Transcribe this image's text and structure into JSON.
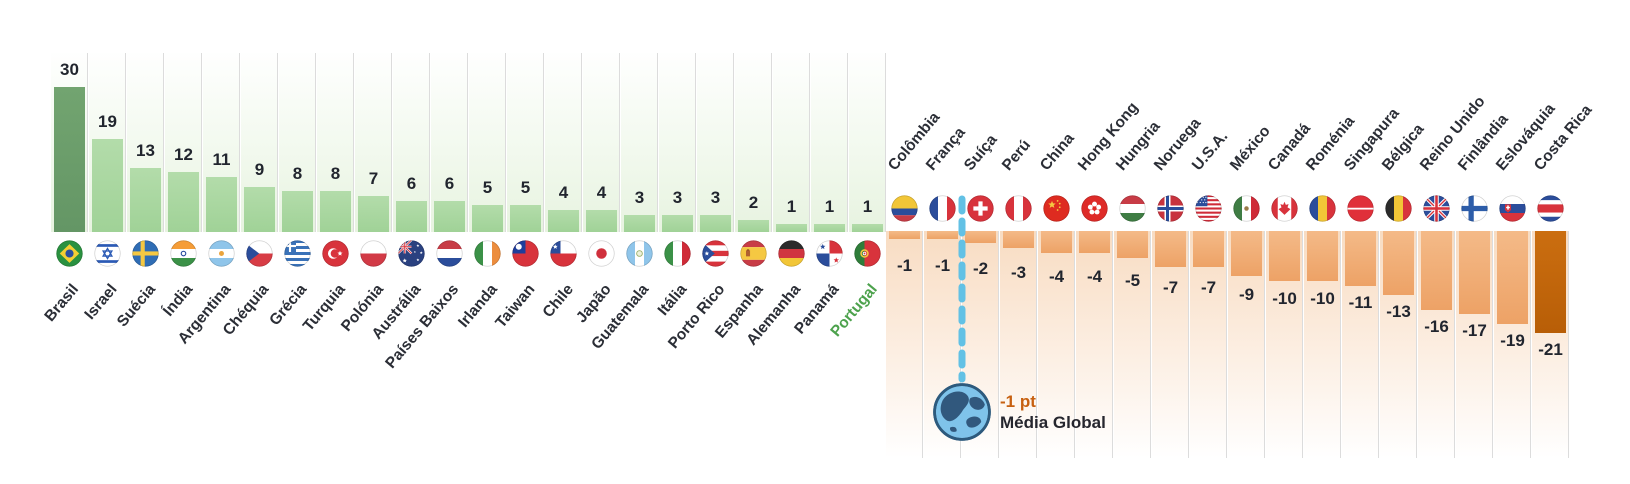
{
  "chart_data": {
    "type": "bar",
    "unit": "pt",
    "legend": "none",
    "grid": "off",
    "layout": "positive bars grow up from shared axis on left group; negative bars hang down on right group; country flag and rotated name label at axis side of each column",
    "positive_side": {
      "bar_color": "#a9d7a0",
      "highlight_bar_color": "#6b9c68",
      "track_color": "#e7f3e0",
      "items": [
        {
          "label": "Brasil",
          "value": 30,
          "flag": "brasil",
          "bar_highlight": true
        },
        {
          "label": "Israel",
          "value": 19,
          "flag": "israel"
        },
        {
          "label": "Suécia",
          "value": 13,
          "flag": "suecia"
        },
        {
          "label": "Índia",
          "value": 12,
          "flag": "india"
        },
        {
          "label": "Argentina",
          "value": 11,
          "flag": "argentina"
        },
        {
          "label": "Chéquia",
          "value": 9,
          "flag": "chequia"
        },
        {
          "label": "Grécia",
          "value": 8,
          "flag": "grecia"
        },
        {
          "label": "Turquia",
          "value": 8,
          "flag": "turquia"
        },
        {
          "label": "Polónia",
          "value": 7,
          "flag": "polonia"
        },
        {
          "label": "Austrália",
          "value": 6,
          "flag": "australia"
        },
        {
          "label": "Países Baixos",
          "value": 6,
          "flag": "paises-baixos"
        },
        {
          "label": "Irlanda",
          "value": 5,
          "flag": "irlanda"
        },
        {
          "label": "Taiwan",
          "value": 5,
          "flag": "taiwan"
        },
        {
          "label": "Chile",
          "value": 4,
          "flag": "chile"
        },
        {
          "label": "Japão",
          "value": 4,
          "flag": "japao"
        },
        {
          "label": "Guatemala",
          "value": 3,
          "flag": "guatemala"
        },
        {
          "label": "Itália",
          "value": 3,
          "flag": "italia"
        },
        {
          "label": "Porto Rico",
          "value": 3,
          "flag": "porto-rico"
        },
        {
          "label": "Espanha",
          "value": 2,
          "flag": "espanha"
        },
        {
          "label": "Alemanha",
          "value": 1,
          "flag": "alemanha"
        },
        {
          "label": "Panamá",
          "value": 1,
          "flag": "panama"
        },
        {
          "label": "Portugal",
          "value": 1,
          "flag": "portugal",
          "label_highlight": true
        }
      ]
    },
    "negative_side": {
      "bar_color": "#f1ad76",
      "highlight_bar_color": "#c2660c",
      "track_color": "#f8dcc2",
      "items": [
        {
          "label": "Colômbia",
          "value": -1,
          "flag": "colombia"
        },
        {
          "label": "França",
          "value": -1,
          "flag": "franca"
        },
        {
          "label": "Suíça",
          "value": -2,
          "flag": "suica"
        },
        {
          "label": "Perú",
          "value": -3,
          "flag": "peru"
        },
        {
          "label": "China",
          "value": -4,
          "flag": "china"
        },
        {
          "label": "Hong Kong",
          "value": -4,
          "flag": "hong-kong"
        },
        {
          "label": "Hungria",
          "value": -5,
          "flag": "hungria"
        },
        {
          "label": "Noruega",
          "value": -7,
          "flag": "noruega"
        },
        {
          "label": "U.S.A.",
          "value": -7,
          "flag": "usa"
        },
        {
          "label": "México",
          "value": -9,
          "flag": "mexico"
        },
        {
          "label": "Canadá",
          "value": -10,
          "flag": "canada"
        },
        {
          "label": "Roménia",
          "value": -10,
          "flag": "romenia"
        },
        {
          "label": "Singapura",
          "value": -11,
          "flag": "singapura"
        },
        {
          "label": "Bélgica",
          "value": -13,
          "flag": "belgica"
        },
        {
          "label": "Reino Unido",
          "value": -16,
          "flag": "reino-unido"
        },
        {
          "label": "Finlândia",
          "value": -17,
          "flag": "finlandia"
        },
        {
          "label": "Eslováquia",
          "value": -19,
          "flag": "eslovaquia"
        },
        {
          "label": "Costa Rica",
          "value": -21,
          "flag": "costa-rica",
          "bar_highlight": true
        }
      ]
    },
    "global_average": {
      "value": -1,
      "value_label": "-1 pt",
      "label": "Média Global",
      "marker_icon": "globe-icon",
      "line_color": "#62c1e5",
      "value_color": "#c76010"
    },
    "colors": {
      "value_text": "#21252e",
      "label_text": "#2b2e36",
      "highlight_label": "#4da24d",
      "separator": "#dcdcdc"
    }
  }
}
